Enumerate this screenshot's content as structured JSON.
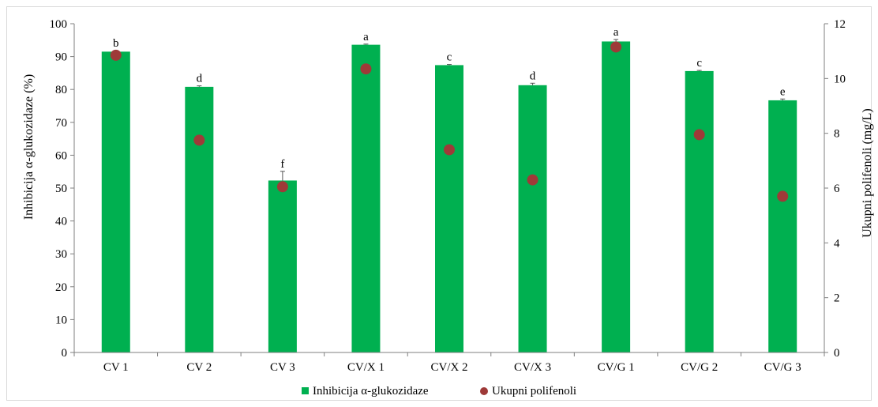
{
  "chart_data": {
    "type": "bar",
    "categories": [
      "CV 1",
      "CV 2",
      "CV 3",
      "CV/X 1",
      "CV/X 2",
      "CV/X 3",
      "CV/G 1",
      "CV/G 2",
      "CV/G 3"
    ],
    "series": [
      {
        "name": "Inhibicija α-glukozidaze",
        "type": "bar",
        "axis": "left",
        "color": "#00b050",
        "values": [
          91.5,
          80.8,
          52.3,
          93.6,
          87.4,
          81.3,
          94.6,
          85.6,
          76.7
        ],
        "errors": [
          0.3,
          0.3,
          2.8,
          0.2,
          0.2,
          0.6,
          0.6,
          0.2,
          0.4
        ],
        "significance": [
          "b",
          "d",
          "f",
          "a",
          "c",
          "d",
          "a",
          "c",
          "e"
        ]
      },
      {
        "name": "Ukupni polifenoli",
        "type": "scatter",
        "axis": "right",
        "color": "#9e3a38",
        "values": [
          10.85,
          7.75,
          6.05,
          10.35,
          7.4,
          6.3,
          11.15,
          7.95,
          5.7
        ]
      }
    ],
    "ylabel": "Inhibicija α-glukozidaze (%)",
    "y2label": "Ukupni polifenoli (mg/L)",
    "ylim": [
      0,
      100
    ],
    "y2lim": [
      0,
      12
    ],
    "yticks": [
      "0",
      "10",
      "20",
      "30",
      "40",
      "50",
      "60",
      "70",
      "80",
      "90",
      "100"
    ],
    "y2ticks": [
      "0",
      "2",
      "4",
      "6",
      "8",
      "10",
      "12"
    ],
    "grid": false,
    "legend_position": "bottom"
  }
}
